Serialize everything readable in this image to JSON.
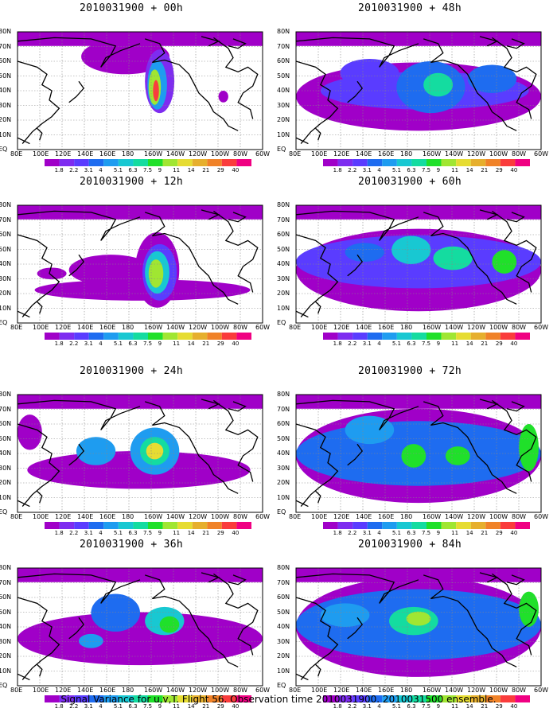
{
  "panels": [
    {
      "title": "2010031900 + 00h",
      "lead": "00h",
      "blobs": [
        [
          0.44,
          0.21,
          0.18,
          0.15,
          0
        ],
        [
          0.58,
          0.42,
          0.06,
          0.27,
          1
        ],
        [
          0.57,
          0.45,
          0.04,
          0.21,
          4
        ],
        [
          0.56,
          0.47,
          0.025,
          0.15,
          8
        ],
        [
          0.565,
          0.5,
          0.012,
          0.09,
          12
        ],
        [
          0.84,
          0.55,
          0.02,
          0.05,
          0
        ]
      ],
      "bands": []
    },
    {
      "title": "2010031900 + 12h",
      "lead": "12h",
      "blobs": [
        [
          0.38,
          0.55,
          0.17,
          0.13,
          0
        ],
        [
          0.14,
          0.58,
          0.06,
          0.05,
          0
        ],
        [
          0.57,
          0.55,
          0.09,
          0.32,
          0
        ],
        [
          0.58,
          0.57,
          0.07,
          0.24,
          2
        ],
        [
          0.57,
          0.57,
          0.05,
          0.18,
          5
        ],
        [
          0.565,
          0.58,
          0.03,
          0.12,
          8
        ]
      ],
      "bands": [
        [
          0.07,
          0.95,
          0.72,
          0.18,
          0
        ]
      ]
    },
    {
      "title": "2010031900 + 24h",
      "lead": "24h",
      "blobs": [
        [
          0.32,
          0.48,
          0.08,
          0.12,
          4
        ],
        [
          0.56,
          0.48,
          0.1,
          0.2,
          4
        ],
        [
          0.56,
          0.48,
          0.06,
          0.12,
          6
        ],
        [
          0.56,
          0.48,
          0.035,
          0.07,
          9
        ],
        [
          0.05,
          0.32,
          0.05,
          0.15,
          0
        ]
      ],
      "bands": [
        [
          0.04,
          0.95,
          0.64,
          0.32,
          0
        ]
      ]
    },
    {
      "title": "2010031900 + 36h",
      "lead": "36h",
      "blobs": [
        [
          0.4,
          0.38,
          0.1,
          0.16,
          3
        ],
        [
          0.6,
          0.45,
          0.08,
          0.12,
          5
        ],
        [
          0.62,
          0.48,
          0.04,
          0.07,
          7
        ],
        [
          0.3,
          0.62,
          0.05,
          0.06,
          4
        ]
      ],
      "bands": [
        [
          0.0,
          1.0,
          0.6,
          0.45,
          0
        ]
      ]
    },
    {
      "title": "2010031900 + 48h",
      "lead": "48h",
      "blobs": [
        [
          0.55,
          0.47,
          0.14,
          0.22,
          3
        ],
        [
          0.58,
          0.45,
          0.06,
          0.1,
          6
        ],
        [
          0.3,
          0.35,
          0.12,
          0.12,
          2
        ],
        [
          0.8,
          0.4,
          0.1,
          0.12,
          3
        ]
      ],
      "bands": [
        [
          0.0,
          1.0,
          0.55,
          0.58,
          0
        ],
        [
          0.1,
          0.95,
          0.5,
          0.32,
          2
        ]
      ]
    },
    {
      "title": "2010031900 + 60h",
      "lead": "60h",
      "blobs": [
        [
          0.47,
          0.38,
          0.08,
          0.12,
          5
        ],
        [
          0.64,
          0.45,
          0.08,
          0.1,
          6
        ],
        [
          0.85,
          0.48,
          0.05,
          0.1,
          7
        ],
        [
          0.28,
          0.4,
          0.08,
          0.08,
          3
        ]
      ],
      "bands": [
        [
          0.0,
          1.0,
          0.55,
          0.7,
          0
        ],
        [
          0.0,
          1.0,
          0.48,
          0.45,
          2
        ]
      ]
    },
    {
      "title": "2010031900 + 72h",
      "lead": "72h",
      "blobs": [
        [
          0.48,
          0.52,
          0.05,
          0.1,
          7
        ],
        [
          0.66,
          0.52,
          0.05,
          0.08,
          7
        ],
        [
          0.3,
          0.3,
          0.1,
          0.12,
          4
        ],
        [
          0.95,
          0.45,
          0.04,
          0.2,
          7
        ]
      ],
      "bands": [
        [
          0.0,
          1.0,
          0.52,
          0.8,
          0
        ],
        [
          0.0,
          1.0,
          0.5,
          0.55,
          3
        ]
      ]
    },
    {
      "title": "2010031900 + 84h",
      "lead": "84h",
      "blobs": [
        [
          0.48,
          0.45,
          0.1,
          0.12,
          6
        ],
        [
          0.5,
          0.43,
          0.05,
          0.06,
          8
        ],
        [
          0.95,
          0.35,
          0.04,
          0.15,
          7
        ],
        [
          0.2,
          0.4,
          0.1,
          0.1,
          4
        ]
      ],
      "bands": [
        [
          0.0,
          1.0,
          0.5,
          0.85,
          0
        ],
        [
          0.0,
          1.0,
          0.48,
          0.6,
          3
        ]
      ]
    }
  ],
  "y_labels": [
    "80N",
    "70N",
    "60N",
    "50N",
    "40N",
    "30N",
    "20N",
    "10N",
    "EQ"
  ],
  "x_labels": [
    "80E",
    "100E",
    "120E",
    "140E",
    "160E",
    "180",
    "160W",
    "140W",
    "120W",
    "100W",
    "80W",
    "60W"
  ],
  "colorbar": {
    "labels": [
      "1.8",
      "2.2",
      "3.1",
      "4",
      "5.1",
      "6.3",
      "7.5",
      "9",
      "11",
      "14",
      "21",
      "29",
      "40"
    ],
    "colors": [
      "#a000c8",
      "#7e2cf0",
      "#5a3cff",
      "#1e6cf0",
      "#1e9cf0",
      "#18c8d2",
      "#14dca0",
      "#20e02a",
      "#a0e632",
      "#e6dc32",
      "#e6af2d",
      "#f08228",
      "#fa3c3c",
      "#f00082"
    ]
  },
  "footer": "Signal Variance for u,v,T. Flight 56. Observation time 2010031900. 2010031500 ensemble.",
  "chart_data": {
    "type": "heatmap",
    "variable": "Signal Variance for u,v,T",
    "flight": "56",
    "observation_time": "2010031900",
    "ensemble": "2010031500",
    "lead_times": [
      "00h",
      "12h",
      "24h",
      "36h",
      "48h",
      "60h",
      "72h",
      "84h"
    ],
    "y_ticks": [
      "80N",
      "70N",
      "60N",
      "50N",
      "40N",
      "30N",
      "20N",
      "10N",
      "EQ"
    ],
    "x_ticks": [
      "80E",
      "100E",
      "120E",
      "140E",
      "160E",
      "180",
      "160W",
      "140W",
      "120W",
      "100W",
      "80W",
      "60W"
    ],
    "levels": [
      1.8,
      2.2,
      3.1,
      4,
      5.1,
      6.3,
      7.5,
      9,
      11,
      14,
      21,
      29,
      40
    ]
  }
}
